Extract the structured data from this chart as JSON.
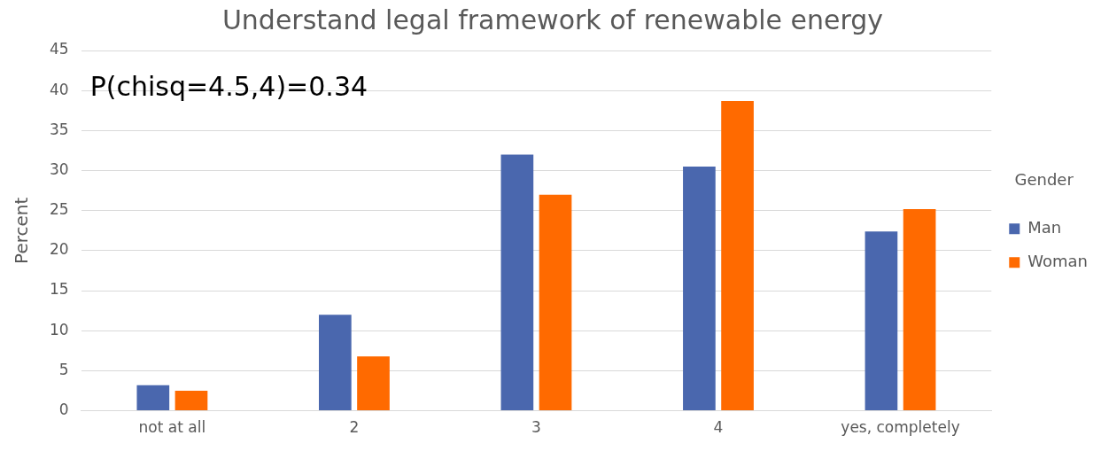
{
  "chart_data": {
    "type": "bar",
    "title": "Understand legal framework of renewable energy",
    "ylabel": "Percent",
    "legend_title": "Gender",
    "categories": [
      "not at all",
      "2",
      "3",
      "4",
      "yes, completely"
    ],
    "series": [
      {
        "name": "Man",
        "color": "#4a67ae",
        "values": [
          3.2,
          12,
          32,
          30.5,
          22.4
        ]
      },
      {
        "name": "Woman",
        "color": "#ff6a00",
        "values": [
          2.5,
          6.8,
          27,
          38.7,
          25.2
        ]
      }
    ],
    "ylim": [
      0,
      45
    ],
    "yticks": [
      0,
      5,
      10,
      15,
      20,
      25,
      30,
      35,
      40,
      45
    ],
    "grid": "y",
    "legend": "right",
    "annotations": [
      "P(chisq=4.5,4)=0.34"
    ]
  }
}
